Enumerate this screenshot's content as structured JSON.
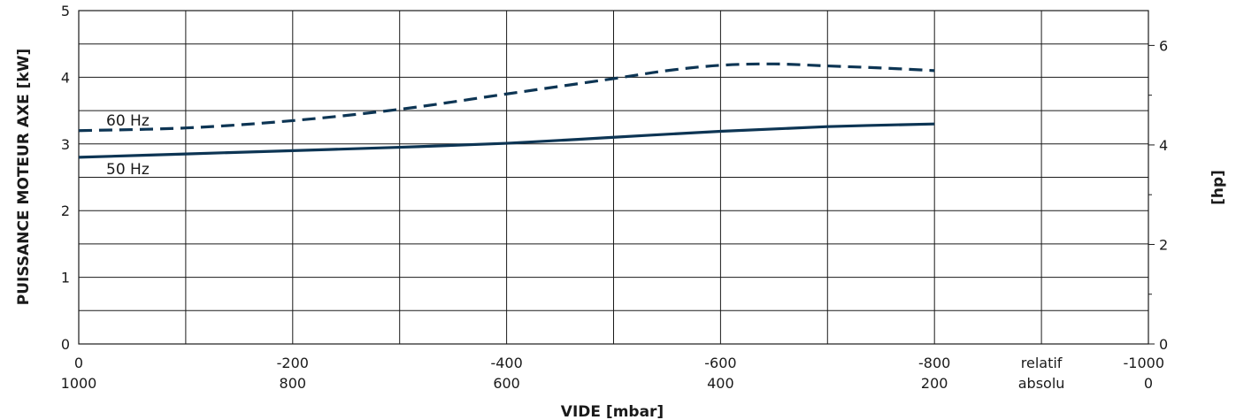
{
  "chart_data": {
    "type": "line",
    "ylabel_left": "PUISSANCE MOTEUR AXE  [kW]",
    "ylabel_right": "[hp]",
    "xlabel": "VIDE  [mbar]",
    "x_range": [
      0,
      -1000
    ],
    "ylim_left": [
      0,
      5
    ],
    "ylim_right_hp": [
      0,
      6.7
    ],
    "y_ticks_left": [
      "0",
      "1",
      "2",
      "3",
      "4",
      "5"
    ],
    "y_ticks_right": [
      "0",
      "2",
      "4",
      "6"
    ],
    "x_ticks": [
      {
        "relative": "0",
        "absolute": "1000"
      },
      {
        "relative": "-200",
        "absolute": "800"
      },
      {
        "relative": "-400",
        "absolute": "600"
      },
      {
        "relative": "-600",
        "absolute": "400"
      },
      {
        "relative": "-800",
        "absolute": "200"
      },
      {
        "relative": "-1000",
        "absolute": "0"
      }
    ],
    "x_scale_labels": {
      "relative": "relatif",
      "absolute": "absolu"
    },
    "grid": true,
    "series": [
      {
        "name": "60 Hz",
        "style": "dashed",
        "color": "#0d3554",
        "points": [
          [
            0,
            3.2
          ],
          [
            -100,
            3.24
          ],
          [
            -200,
            3.35
          ],
          [
            -300,
            3.52
          ],
          [
            -400,
            3.75
          ],
          [
            -500,
            3.98
          ],
          [
            -550,
            4.1
          ],
          [
            -600,
            4.18
          ],
          [
            -650,
            4.2
          ],
          [
            -700,
            4.17
          ],
          [
            -750,
            4.14
          ],
          [
            -800,
            4.1
          ]
        ]
      },
      {
        "name": "50 Hz",
        "style": "solid",
        "color": "#0d3554",
        "points": [
          [
            0,
            2.8
          ],
          [
            -100,
            2.85
          ],
          [
            -200,
            2.9
          ],
          [
            -300,
            2.95
          ],
          [
            -400,
            3.01
          ],
          [
            -500,
            3.1
          ],
          [
            -600,
            3.19
          ],
          [
            -700,
            3.26
          ],
          [
            -800,
            3.3
          ]
        ]
      }
    ]
  }
}
